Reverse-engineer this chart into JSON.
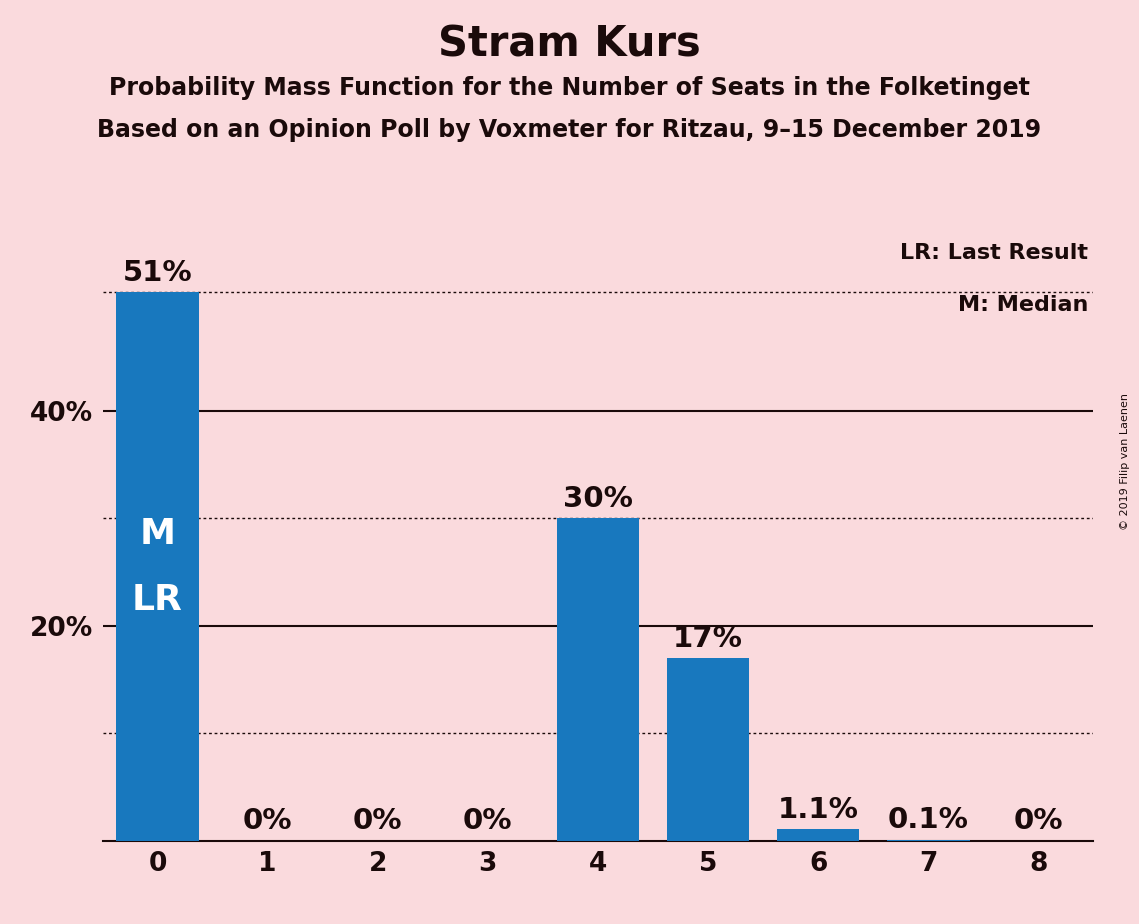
{
  "title": "Stram Kurs",
  "subtitle1": "Probability Mass Function for the Number of Seats in the Folketinget",
  "subtitle2": "Based on an Opinion Poll by Voxmeter for Ritzau, 9–15 December 2019",
  "watermark": "© 2019 Filip van Laenen",
  "categories": [
    0,
    1,
    2,
    3,
    4,
    5,
    6,
    7,
    8
  ],
  "values": [
    51.0,
    0.0,
    0.0,
    0.0,
    30.0,
    17.0,
    1.1,
    0.1,
    0.0
  ],
  "bar_color": "#1878be",
  "background_color": "#fadadd",
  "label_color_inside": "#ffffff",
  "label_color_outside": "#1a0a0a",
  "bar_labels": [
    "51%",
    "0%",
    "0%",
    "0%",
    "30%",
    "17%",
    "1.1%",
    "0.1%",
    "0%"
  ],
  "inside_bar_texts": [
    "M",
    "LR"
  ],
  "inside_bar_index": 0,
  "ylim_max": 55,
  "ytick_positions": [
    20,
    40
  ],
  "ytick_labels": [
    "20%",
    "40%"
  ],
  "dotted_hlines": [
    51.0,
    30.0,
    10.0
  ],
  "solid_hlines": [
    40.0,
    20.0
  ],
  "legend_lr": "LR: Last Result",
  "legend_m": "M: Median",
  "title_fontsize": 30,
  "subtitle_fontsize": 17,
  "tick_fontsize": 19,
  "bar_label_fontsize": 21,
  "inside_text_fontsize": 26,
  "legend_fontsize": 16
}
